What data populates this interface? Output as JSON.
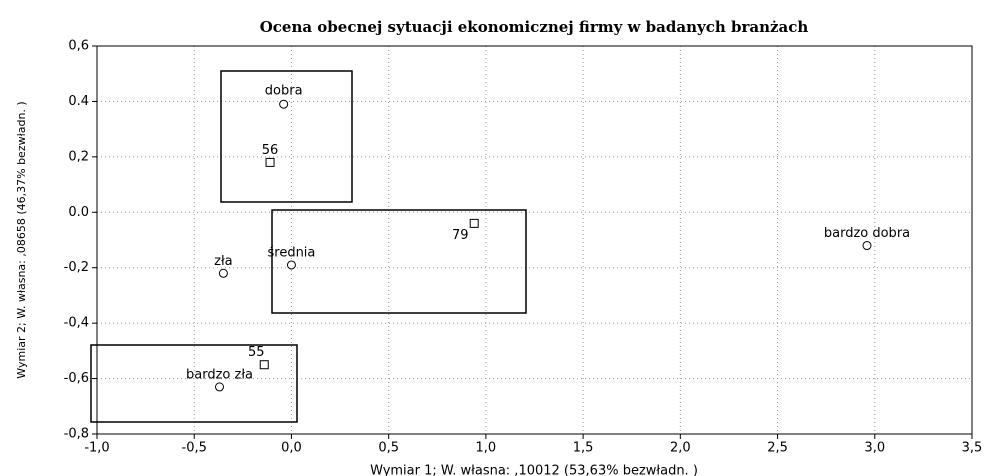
{
  "chart_data": {
    "type": "scatter",
    "title": "Ocena obecnej sytuacji ekonomicznej firmy w badanych branżach",
    "xlabel": "Wymiar 1; W. własna: ,10012 (53,63% bezwładn. )",
    "ylabel": "Wymiar 2; W. własna: ,08658 (46,37% bezwładn. )",
    "xlim": [
      -1.0,
      3.5
    ],
    "xticks": [
      {
        "value": -1.0,
        "label": "-1,0"
      },
      {
        "value": -0.5,
        "label": "-0,5"
      },
      {
        "value": 0,
        "label": "0,0"
      },
      {
        "value": 0.5,
        "label": "0,5"
      },
      {
        "value": 1.0,
        "label": "1,0"
      },
      {
        "value": 1.5,
        "label": "1,5"
      },
      {
        "value": 2.0,
        "label": "2,0"
      },
      {
        "value": 2.5,
        "label": "2,5"
      },
      {
        "value": 3.0,
        "label": "3,0"
      },
      {
        "value": 3.5,
        "label": "3,5"
      }
    ],
    "ylim": [
      -0.8,
      0.6
    ],
    "yticks": [
      {
        "value": -0.8,
        "label": "-0,8"
      },
      {
        "value": -0.6,
        "label": "-0,6"
      },
      {
        "value": -0.4,
        "label": "-0,4"
      },
      {
        "value": -0.2,
        "label": "-0,2"
      },
      {
        "value": 0,
        "label": "0.0"
      },
      {
        "value": 0.2,
        "label": "0,2"
      },
      {
        "value": 0.4,
        "label": "0.4"
      },
      {
        "value": 0.6,
        "label": "0,6"
      }
    ],
    "grid": true,
    "series": [
      {
        "marker": "circle",
        "color": "#000000",
        "labels": [
          "dobra",
          "bardzo dobra",
          "zła",
          "średnia",
          "bardzo zła"
        ],
        "x": [
          -0.04,
          2.96,
          -0.35,
          0.0,
          -0.37
        ],
        "values": [
          0.39,
          -0.12,
          -0.22,
          -0.19,
          -0.63
        ]
      },
      {
        "marker": "square",
        "color": "#000000",
        "labels": [
          "56",
          "79",
          "55"
        ],
        "x": [
          -0.11,
          0.94,
          -0.14
        ],
        "values": [
          0.18,
          -0.04,
          -0.55
        ]
      }
    ]
  }
}
